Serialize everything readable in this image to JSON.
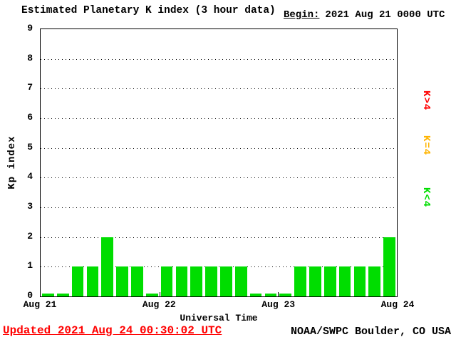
{
  "header": {
    "title": "Estimated Planetary K index (3 hour data)",
    "begin_label": "Begin:",
    "begin_value": "2021 Aug 21 0000 UTC"
  },
  "footer": {
    "updated": "Updated 2021 Aug 24 00:30:02 UTC",
    "updated_color": "#ff0000",
    "source": "NOAA/SWPC Boulder, CO USA"
  },
  "legend": [
    {
      "label": "K>4",
      "color": "#ff0000"
    },
    {
      "label": "K=4",
      "color": "#ffb400"
    },
    {
      "label": "K<4",
      "color": "#00dd00"
    }
  ],
  "chart_data": {
    "type": "bar",
    "title": "Estimated Planetary K index (3 hour data)",
    "xlabel": "Universal Time",
    "ylabel": "Kp index",
    "ylim": [
      0,
      9
    ],
    "yticks": [
      0,
      1,
      2,
      3,
      4,
      5,
      6,
      7,
      8,
      9
    ],
    "x_tick_labels": [
      "Aug 21",
      "Aug 22",
      "Aug 23",
      "Aug 24"
    ],
    "interval_hours": 3,
    "grid": "dotted-horizontal",
    "bar_color": "#00dd00",
    "values": [
      0,
      0,
      1,
      1,
      2,
      1,
      1,
      0,
      1,
      1,
      1,
      1,
      1,
      1,
      0,
      0,
      0,
      1,
      1,
      1,
      1,
      1,
      1,
      2
    ]
  }
}
